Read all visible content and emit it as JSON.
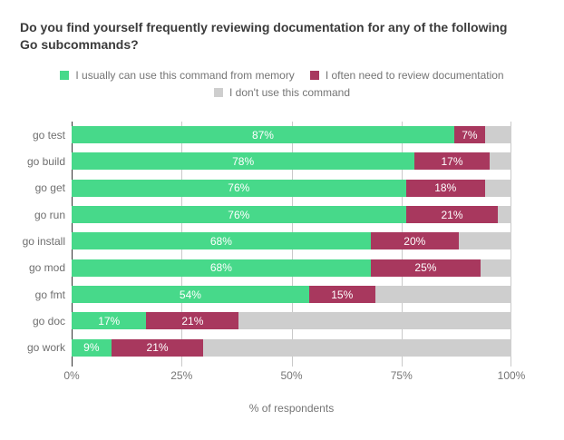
{
  "title": "Do you find yourself frequently reviewing documentation for any of the following Go subcommands?",
  "legend": [
    {
      "label": "I usually can use this command from memory",
      "color": "#47d98a"
    },
    {
      "label": "I often need to review documentation",
      "color": "#a8385e"
    },
    {
      "label": "I don't use this command",
      "color": "#cecece"
    }
  ],
  "colors": {
    "background": "#ffffff",
    "title_text": "#3b3b3b",
    "muted_text": "#757575",
    "category_text": "#6f6f6f",
    "bar_value_label": "#ffffff",
    "gridline": "#c9c9c9",
    "y_axis_line": "#333333",
    "green": "#47d98a",
    "crimson": "#a8385e",
    "gray": "#cecece"
  },
  "chart_data": {
    "type": "bar",
    "orientation": "horizontal",
    "stacked": true,
    "title": "Do you find yourself frequently reviewing documentation for any of the following Go subcommands?",
    "xlabel": "% of respondents",
    "ylabel": "",
    "xlim": [
      0,
      100
    ],
    "grid": true,
    "legend_position": "top",
    "categories": [
      "go test",
      "go build",
      "go get",
      "go run",
      "go install",
      "go mod",
      "go fmt",
      "go doc",
      "go work"
    ],
    "series": [
      {
        "name": "I usually can use this command from memory",
        "color": "#47d98a",
        "show_labels": true,
        "label_suffix": "%",
        "values": [
          87,
          78,
          76,
          76,
          68,
          68,
          54,
          17,
          9
        ]
      },
      {
        "name": "I often need to review documentation",
        "color": "#a8385e",
        "show_labels": true,
        "label_suffix": "%",
        "values": [
          7,
          17,
          18,
          21,
          20,
          25,
          15,
          21,
          21
        ]
      },
      {
        "name": "I don't use this command",
        "color": "#cecece",
        "show_labels": false,
        "label_suffix": "%",
        "values": [
          6,
          5,
          6,
          3,
          12,
          7,
          31,
          62,
          70
        ]
      }
    ],
    "x_ticks": [
      {
        "label": "0%",
        "value": 0
      },
      {
        "label": "25%",
        "value": 25
      },
      {
        "label": "50%",
        "value": 50
      },
      {
        "label": "75%",
        "value": 75
      },
      {
        "label": "100%",
        "value": 100
      }
    ]
  }
}
